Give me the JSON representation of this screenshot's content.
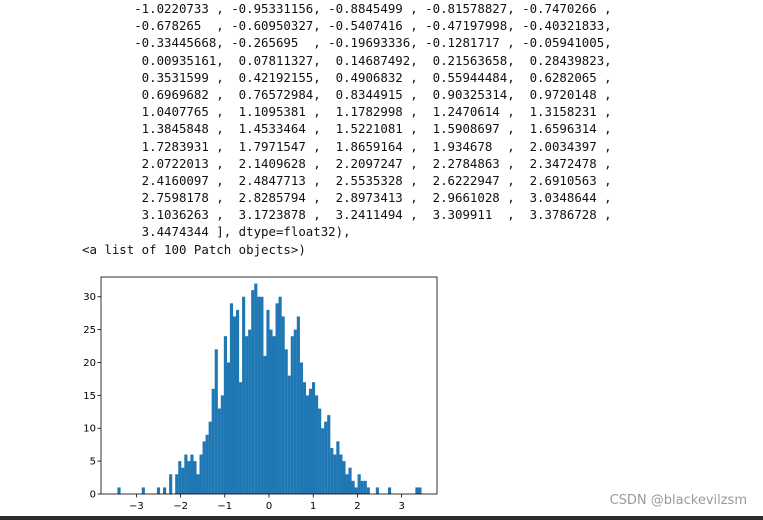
{
  "output": {
    "lines": [
      "       -1.0220733 , -0.95331156, -0.8845499 , -0.81578827, -0.7470266 ,",
      "       -0.678265  , -0.60950327, -0.5407416 , -0.47197998, -0.40321833,",
      "       -0.33445668, -0.265695  , -0.19693336, -0.1281717 , -0.05941005,",
      "        0.00935161,  0.07811327,  0.14687492,  0.21563658,  0.28439823,",
      "        0.3531599 ,  0.42192155,  0.4906832 ,  0.55944484,  0.6282065 ,",
      "        0.6969682 ,  0.76572984,  0.8344915 ,  0.90325314,  0.9720148 ,",
      "        1.0407765 ,  1.1095381 ,  1.1782998 ,  1.2470614 ,  1.3158231 ,",
      "        1.3845848 ,  1.4533464 ,  1.5221081 ,  1.5908697 ,  1.6596314 ,",
      "        1.7283931 ,  1.7971547 ,  1.8659164 ,  1.934678  ,  2.0034397 ,",
      "        2.0722013 ,  2.1409628 ,  2.2097247 ,  2.2784863 ,  2.3472478 ,",
      "        2.4160097 ,  2.4847713 ,  2.5535328 ,  2.6222947 ,  2.6910563 ,",
      "        2.7598178 ,  2.8285794 ,  2.8973413 ,  2.9661028 ,  3.0348644 ,",
      "        3.1036263 ,  3.1723878 ,  3.2411494 ,  3.309911  ,  3.3786728 ,",
      "        3.4474344 ], dtype=float32),",
      "<a list of 100 Patch objects>)"
    ]
  },
  "chart_data": {
    "type": "bar",
    "title": "",
    "xlabel": "",
    "ylabel": "",
    "bin_start": -3.4283867,
    "bin_width": 0.06876166,
    "values": [
      1,
      0,
      0,
      0,
      0,
      0,
      0,
      0,
      1,
      0,
      0,
      0,
      0,
      1,
      0,
      1,
      0,
      3,
      0,
      3,
      5,
      4,
      6,
      5,
      6,
      5,
      3,
      6,
      8,
      9,
      11,
      16,
      22,
      13,
      15,
      24,
      20,
      29,
      27,
      28,
      17,
      30,
      24,
      25,
      31,
      32,
      30,
      30,
      21,
      28,
      25,
      24,
      29,
      30,
      27,
      22,
      18,
      24,
      25,
      27,
      20,
      17,
      15,
      16,
      17,
      15,
      13,
      10,
      11,
      12,
      7,
      6,
      8,
      6,
      5,
      3,
      4,
      2,
      1,
      3,
      2,
      2,
      1,
      0,
      0,
      1,
      0,
      0,
      0,
      1,
      0,
      0,
      0,
      0,
      0,
      0,
      0,
      0,
      1,
      1
    ],
    "xlim": [
      -3.8,
      3.8
    ],
    "ylim": [
      0,
      33
    ],
    "xticks": [
      "−3",
      "−2",
      "−1",
      "0",
      "1",
      "2",
      "3"
    ],
    "xtick_values": [
      -3,
      -2,
      -1,
      0,
      1,
      2,
      3
    ],
    "yticks": [
      "0",
      "5",
      "10",
      "15",
      "20",
      "25",
      "30"
    ],
    "ytick_values": [
      0,
      5,
      10,
      15,
      20,
      25,
      30
    ],
    "bar_color": "#1f77b4"
  },
  "watermark": "CSDN @blackevilzsm"
}
